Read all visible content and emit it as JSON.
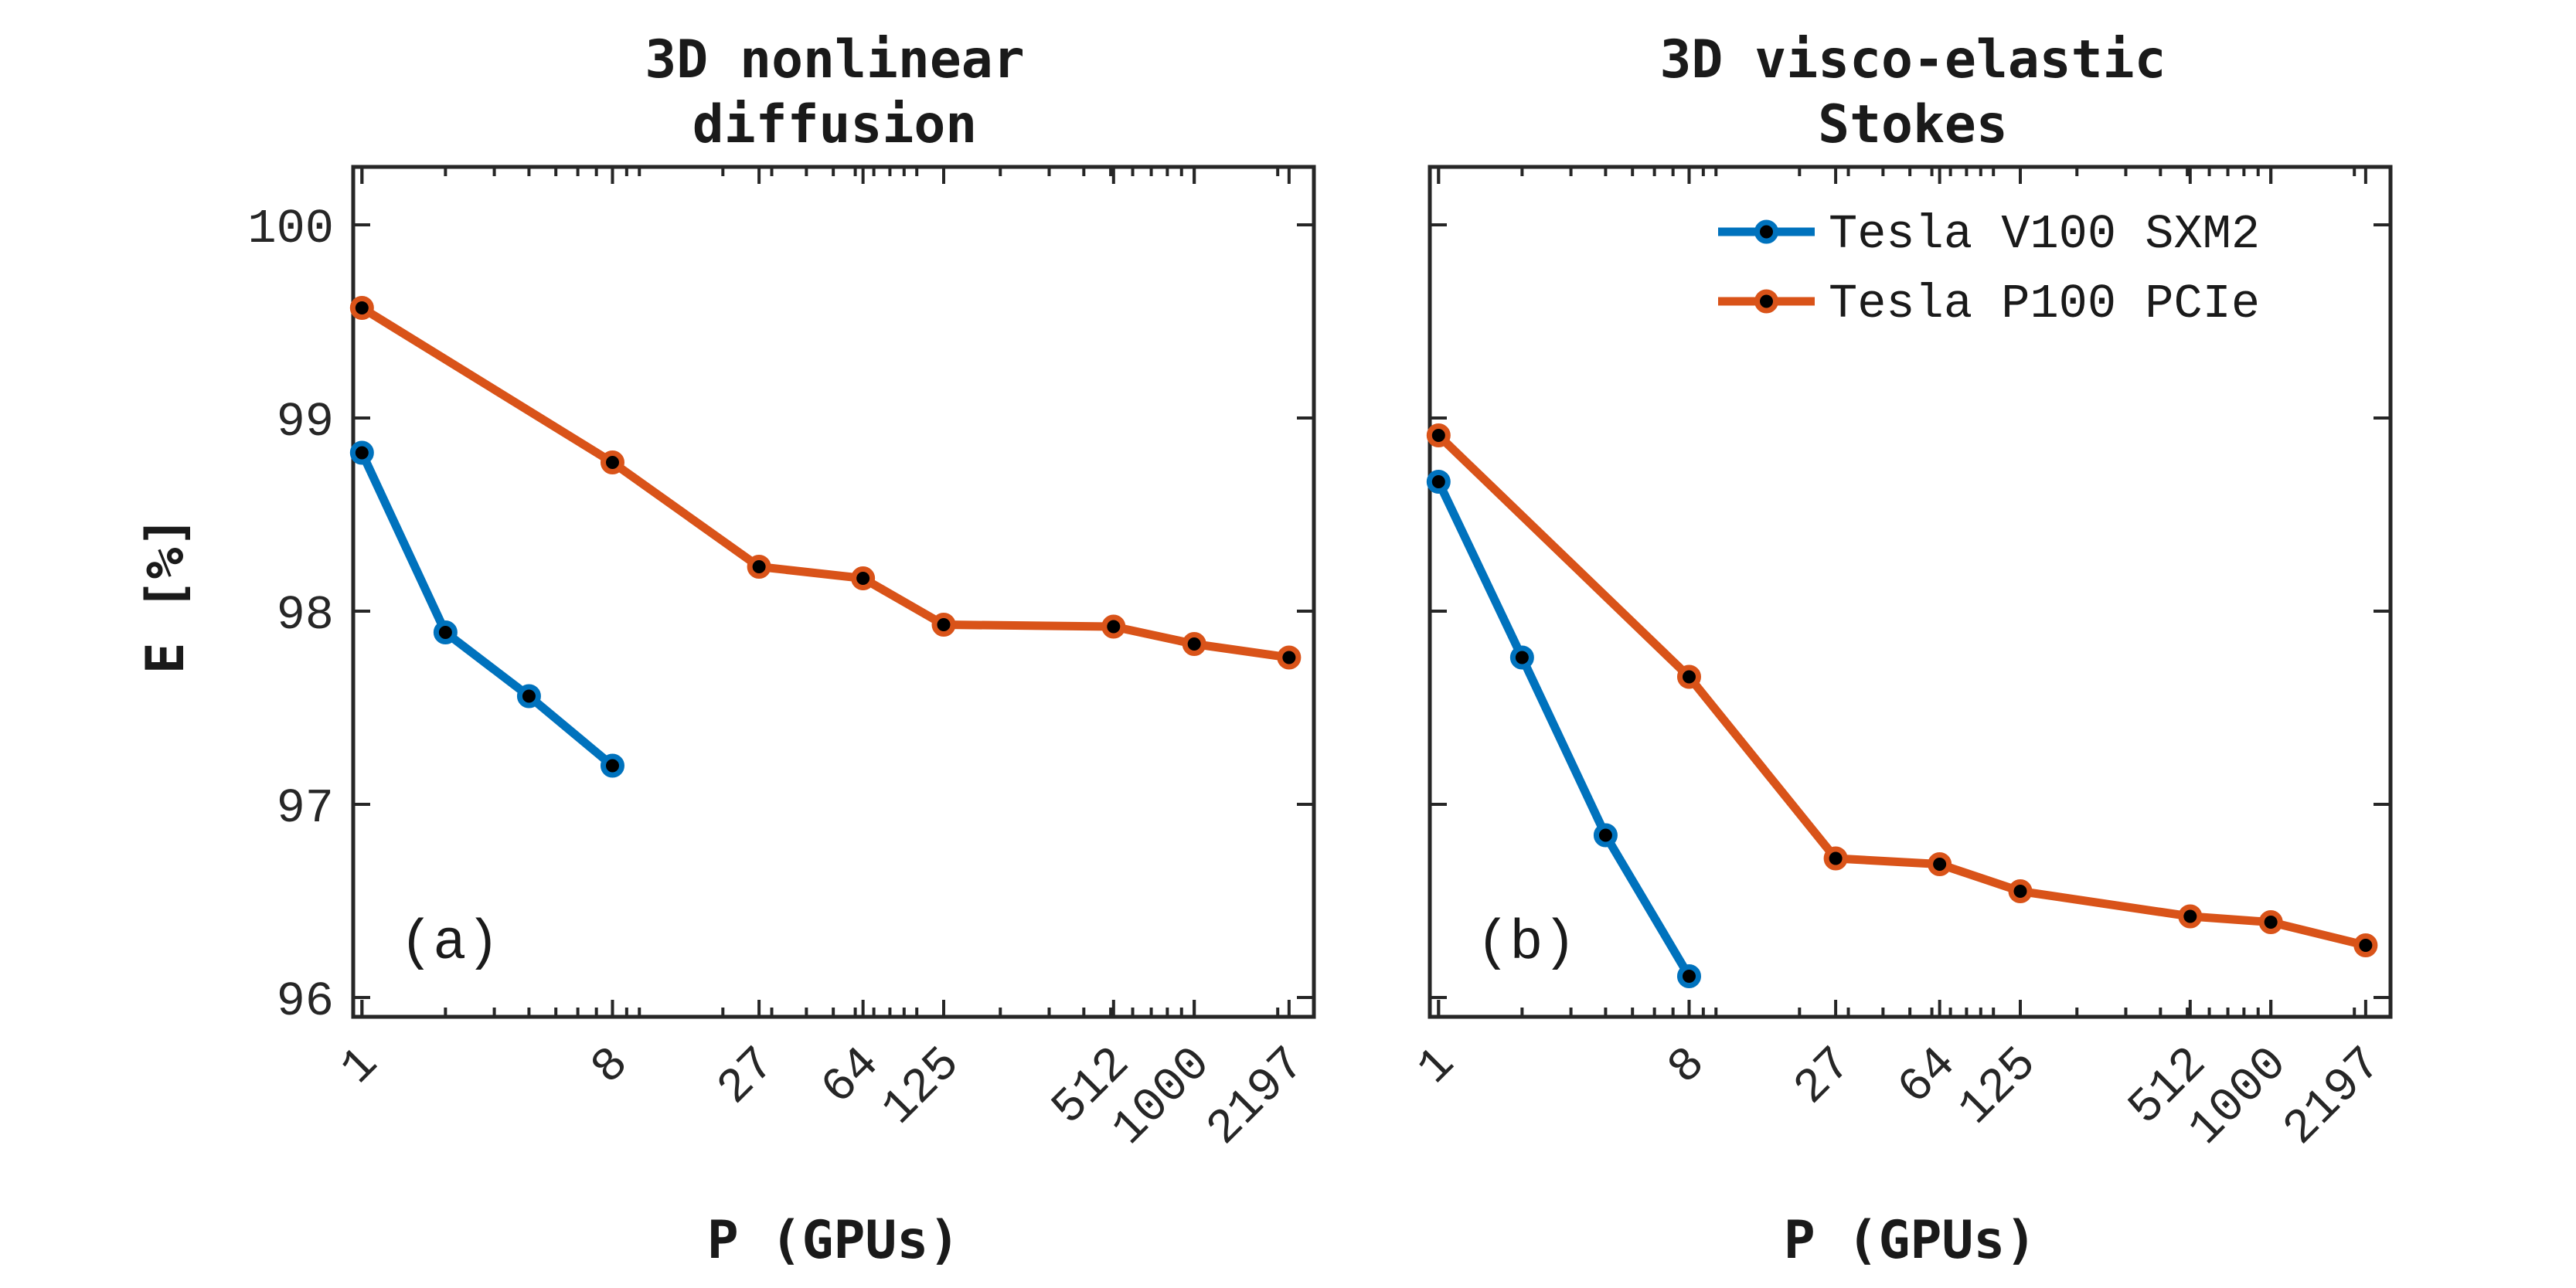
{
  "chart_data": [
    {
      "type": "line",
      "title": [
        "3D nonlinear",
        "diffusion"
      ],
      "xlabel": "P (GPUs)",
      "ylabel": "E [%]",
      "xscale": "log",
      "xticks": [
        1,
        8,
        27,
        64,
        125,
        512,
        1000,
        2197
      ],
      "ylim": [
        95.9,
        100.3
      ],
      "yticks": [
        96,
        97,
        98,
        99,
        100
      ],
      "annotation": "(a)",
      "series": [
        {
          "name": "Tesla V100 SXM2",
          "color": "#0072BD",
          "x": [
            1,
            2,
            4,
            8
          ],
          "y": [
            98.82,
            97.89,
            97.56,
            97.2
          ]
        },
        {
          "name": "Tesla P100 PCIe",
          "color": "#D95319",
          "x": [
            1,
            8,
            27,
            64,
            125,
            512,
            1000,
            2197
          ],
          "y": [
            99.57,
            98.77,
            98.23,
            98.17,
            97.93,
            97.92,
            97.83,
            97.76
          ]
        }
      ]
    },
    {
      "type": "line",
      "title": [
        "3D visco-elastic",
        "Stokes"
      ],
      "xlabel": "P (GPUs)",
      "xscale": "log",
      "xticks": [
        1,
        8,
        27,
        64,
        125,
        512,
        1000,
        2197
      ],
      "ylim": [
        95.9,
        100.3
      ],
      "yticks": [
        96,
        97,
        98,
        99,
        100
      ],
      "annotation": "(b)",
      "legend_position": "top-right",
      "series": [
        {
          "name": "Tesla V100 SXM2",
          "color": "#0072BD",
          "x": [
            1,
            2,
            4,
            8
          ],
          "y": [
            98.67,
            97.76,
            96.84,
            96.11
          ]
        },
        {
          "name": "Tesla P100 PCIe",
          "color": "#D95319",
          "x": [
            1,
            8,
            27,
            64,
            125,
            512,
            1000,
            2197
          ],
          "y": [
            98.91,
            97.66,
            96.72,
            96.69,
            96.55,
            96.42,
            96.39,
            96.27
          ]
        }
      ]
    }
  ]
}
